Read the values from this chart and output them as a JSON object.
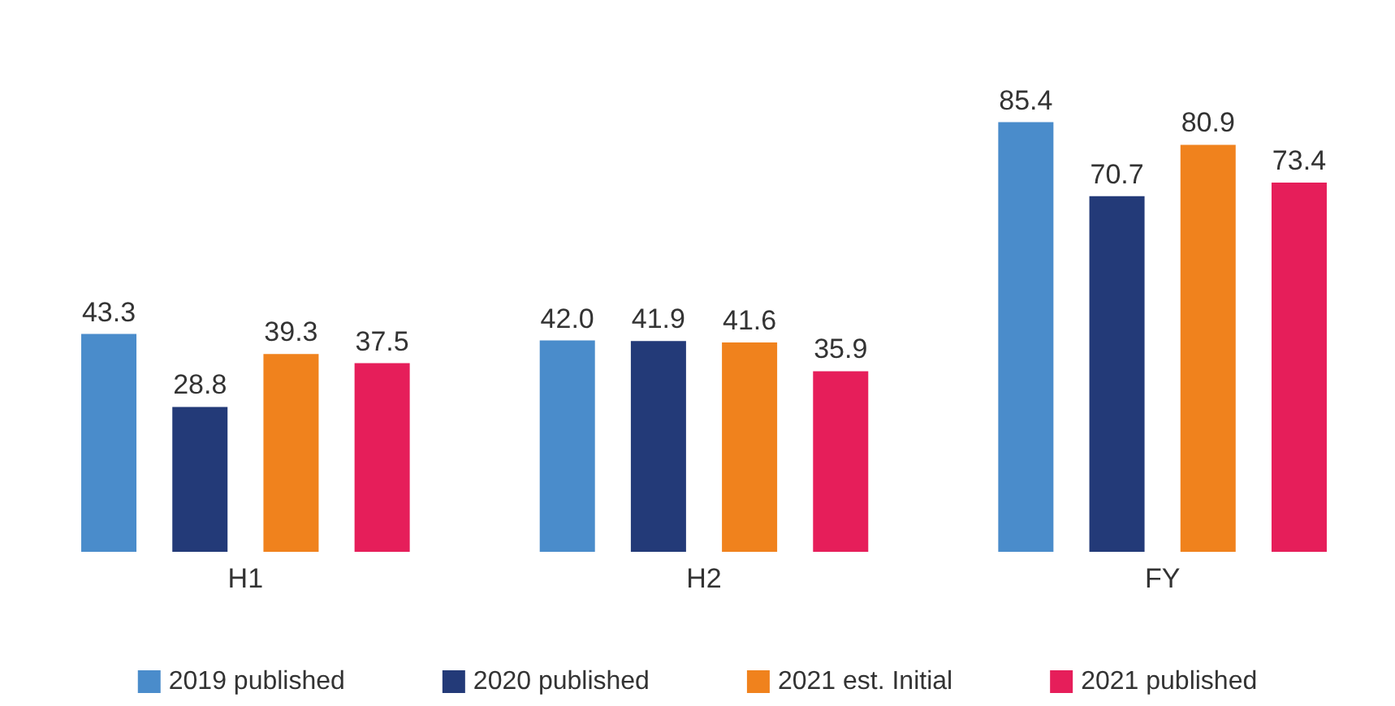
{
  "chart_data": {
    "type": "bar",
    "categories": [
      "H1",
      "H2",
      "FY"
    ],
    "series": [
      {
        "name": "2019 published",
        "color": "#4a8ccb",
        "values": [
          43.3,
          42.0,
          85.4
        ],
        "value_labels": [
          "43.3",
          "42.0",
          "85.4"
        ]
      },
      {
        "name": "2020 published",
        "color": "#233a78",
        "values": [
          28.8,
          41.9,
          70.7
        ]
      },
      {
        "name": "2021 est. Initial",
        "color": "#f0821d",
        "values": [
          39.3,
          41.6,
          80.9
        ]
      },
      {
        "name": "2021 published",
        "color": "#e61e5a",
        "values": [
          37.5,
          35.9,
          73.4
        ]
      }
    ],
    "data_labels": true,
    "legend": "bottom",
    "grid": false
  }
}
